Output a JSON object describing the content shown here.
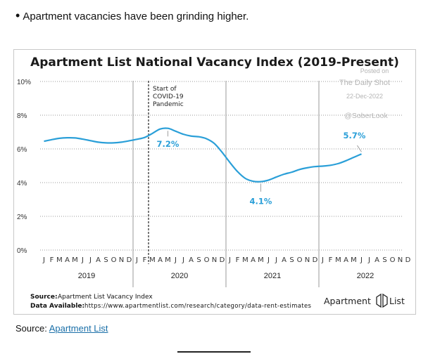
{
  "intro": {
    "bullet": "•",
    "text": "Apartment vacancies have been grinding higher."
  },
  "chart_data": {
    "type": "line",
    "title": "Apartment List National Vacancy Index (2019-Present)",
    "ylim": [
      0,
      10
    ],
    "y_ticks": [
      "0%",
      "2%",
      "4%",
      "6%",
      "8%",
      "10%"
    ],
    "month_letters": [
      "J",
      "F",
      "M",
      "A",
      "M",
      "J",
      "J",
      "A",
      "S",
      "O",
      "N",
      "D"
    ],
    "years": [
      "2019",
      "2020",
      "2021",
      "2022"
    ],
    "series": [
      {
        "color": "#2a9fd8",
        "values": [
          6.45,
          6.55,
          6.63,
          6.66,
          6.65,
          6.58,
          6.49,
          6.4,
          6.36,
          6.36,
          6.4,
          6.48,
          6.57,
          6.68,
          6.92,
          7.18,
          7.22,
          7.05,
          6.87,
          6.76,
          6.72,
          6.6,
          6.32,
          5.8,
          5.2,
          4.65,
          4.25,
          4.08,
          4.06,
          4.15,
          4.33,
          4.5,
          4.62,
          4.78,
          4.88,
          4.95,
          4.98,
          5.03,
          5.13,
          5.3,
          5.5,
          5.7
        ]
      }
    ],
    "annotations": [
      {
        "text": "7.2%",
        "month_index": 16,
        "value": 7.2
      },
      {
        "text": "4.1%",
        "month_index": 28,
        "value": 4.06
      },
      {
        "text": "5.7%",
        "month_index": 41,
        "value": 5.7
      }
    ],
    "event_marker": {
      "month_index": 14,
      "lines": [
        "Start of",
        "COVID-19",
        "Pandemic"
      ]
    },
    "grid": true
  },
  "watermark": {
    "line1": "Posted on",
    "line2": "The Daily Shot",
    "line3": "22-Dec-2022",
    "line4": "@SoberLook"
  },
  "footer": {
    "source_label": "Source:",
    "source_text": "Apartment List Vacancy Index",
    "available_label": "Data Available:",
    "available_text": "https://www.apartmentlist.com/research/category/data-rent-estimates",
    "logo_text": "Apartment",
    "logo_text2": "List"
  },
  "page_source": {
    "label": "Source:",
    "link_text": "Apartment List"
  },
  "colors": {
    "line": "#2a9fd8",
    "label": "#2a9fd8",
    "grid": "#888888"
  }
}
